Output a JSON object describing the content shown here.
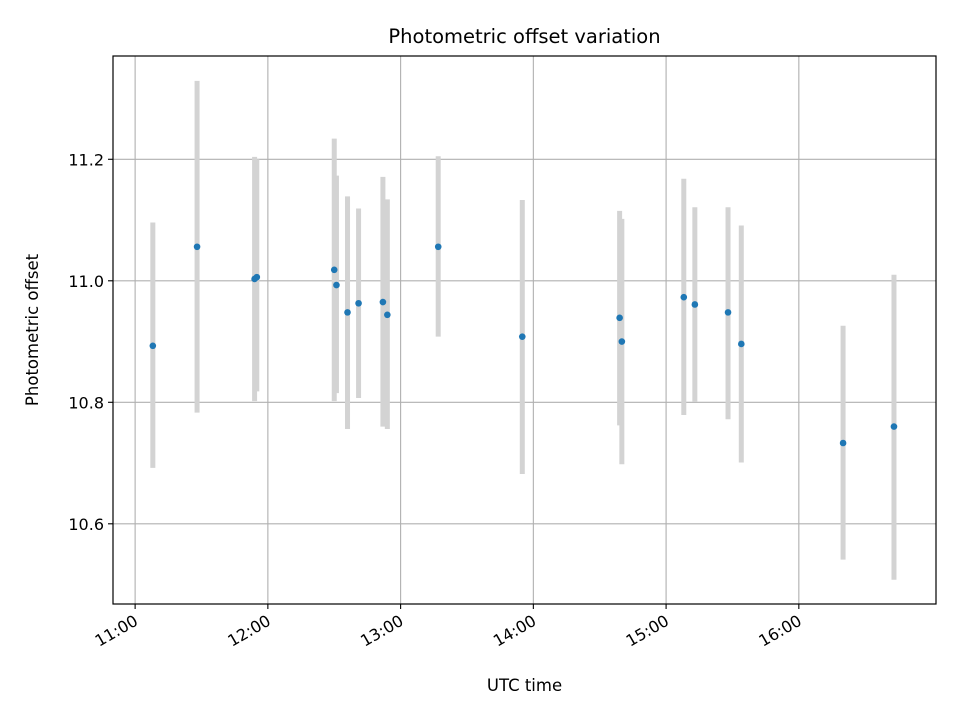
{
  "chart_data": {
    "type": "scatter",
    "title": "Photometric offset variation",
    "xlabel": "UTC time",
    "ylabel": "Photometric offset",
    "x_ticks": [
      "11:00",
      "12:00",
      "13:00",
      "14:00",
      "15:00",
      "16:00"
    ],
    "y_ticks": [
      "10.6",
      "10.8",
      "11.0",
      "11.2"
    ],
    "xlim": [
      "10:50",
      "17:02"
    ],
    "ylim": [
      10.468,
      11.37
    ],
    "grid": true,
    "colors": {
      "point": "#1f77b4",
      "errorbar": "#d3d3d3",
      "grid": "#b0b0b0",
      "axes": "#000000"
    },
    "points": [
      {
        "x": "11:08",
        "y": 10.893,
        "low": 10.692,
        "high": 11.096
      },
      {
        "x": "11:28",
        "y": 11.056,
        "low": 10.783,
        "high": 11.329
      },
      {
        "x": "11:54",
        "y": 11.003,
        "low": 10.802,
        "high": 11.204
      },
      {
        "x": "11:55",
        "y": 11.006,
        "low": 10.818,
        "high": 11.2
      },
      {
        "x": "12:30",
        "y": 11.018,
        "low": 10.802,
        "high": 11.234
      },
      {
        "x": "12:31",
        "y": 10.993,
        "low": 10.815,
        "high": 11.173
      },
      {
        "x": "12:36",
        "y": 10.948,
        "low": 10.756,
        "high": 11.139
      },
      {
        "x": "12:41",
        "y": 10.963,
        "low": 10.807,
        "high": 11.119
      },
      {
        "x": "12:52",
        "y": 10.965,
        "low": 10.76,
        "high": 11.171
      },
      {
        "x": "12:54",
        "y": 10.944,
        "low": 10.756,
        "high": 11.134
      },
      {
        "x": "13:17",
        "y": 11.056,
        "low": 10.908,
        "high": 11.205
      },
      {
        "x": "13:55",
        "y": 10.908,
        "low": 10.682,
        "high": 11.133
      },
      {
        "x": "14:39",
        "y": 10.939,
        "low": 10.762,
        "high": 11.115
      },
      {
        "x": "14:40",
        "y": 10.9,
        "low": 10.698,
        "high": 11.102
      },
      {
        "x": "15:08",
        "y": 10.973,
        "low": 10.779,
        "high": 11.168
      },
      {
        "x": "15:13",
        "y": 10.961,
        "low": 10.801,
        "high": 11.121
      },
      {
        "x": "15:28",
        "y": 10.948,
        "low": 10.772,
        "high": 11.121
      },
      {
        "x": "15:34",
        "y": 10.896,
        "low": 10.701,
        "high": 11.091
      },
      {
        "x": "16:20",
        "y": 10.733,
        "low": 10.541,
        "high": 10.926
      },
      {
        "x": "16:43",
        "y": 10.76,
        "low": 10.508,
        "high": 11.01
      }
    ]
  }
}
